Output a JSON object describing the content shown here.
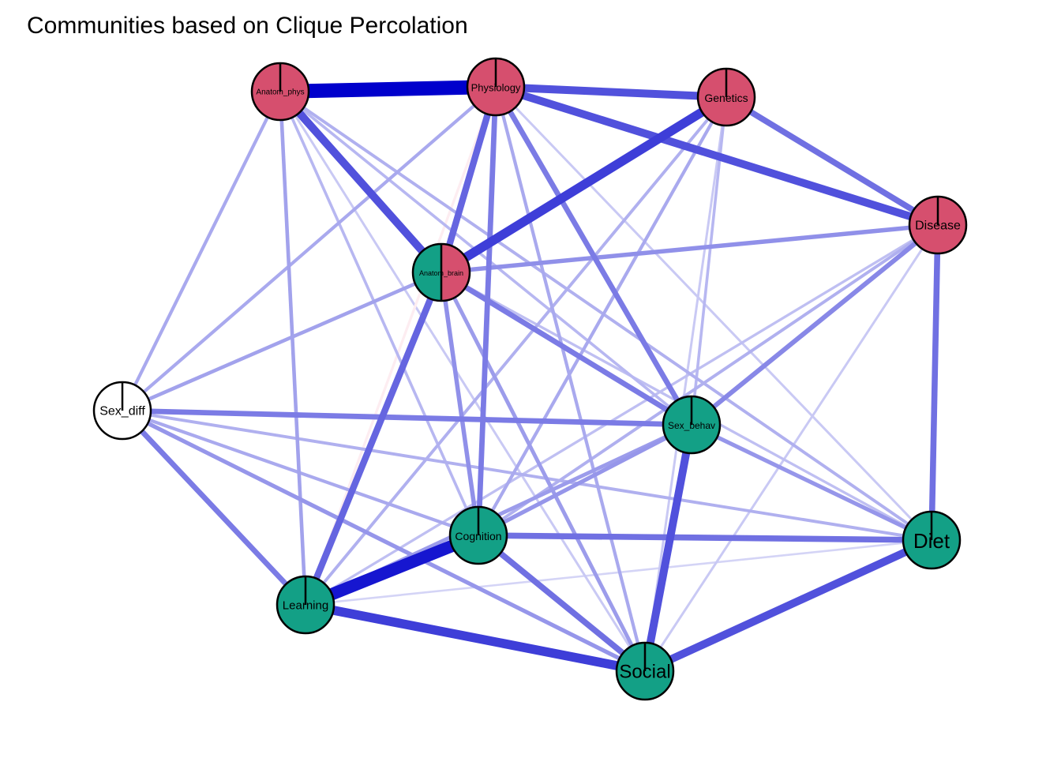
{
  "title": "Communities based on Clique Percolation",
  "colors": {
    "community_red": "#d64f6e",
    "community_teal": "#13a086",
    "unassigned": "#ffffff",
    "edge_positive": "#0000cc",
    "edge_negative": "#f5b8c8"
  },
  "nodes": [
    {
      "id": "Anatom_phys",
      "label": "Anatom_phys",
      "communities": [
        "red"
      ]
    },
    {
      "id": "Physiology",
      "label": "Physiology",
      "communities": [
        "red"
      ]
    },
    {
      "id": "Genetics",
      "label": "Genetics",
      "communities": [
        "red"
      ]
    },
    {
      "id": "Disease",
      "label": "Disease",
      "communities": [
        "red"
      ]
    },
    {
      "id": "Anatom_brain",
      "label": "Anatom_brain",
      "communities": [
        "teal",
        "red"
      ]
    },
    {
      "id": "Sex_diff",
      "label": "Sex_diff",
      "communities": []
    },
    {
      "id": "Sex_behav",
      "label": "Sex_behav",
      "communities": [
        "teal"
      ]
    },
    {
      "id": "Cognition",
      "label": "Cognition",
      "communities": [
        "teal"
      ]
    },
    {
      "id": "Diet",
      "label": "Diet",
      "communities": [
        "teal"
      ]
    },
    {
      "id": "Learning",
      "label": "Learning",
      "communities": [
        "teal"
      ]
    },
    {
      "id": "Social",
      "label": "Social",
      "communities": [
        "teal"
      ]
    }
  ],
  "edges": [
    {
      "from": "Anatom_phys",
      "to": "Physiology",
      "weight": 1.0
    },
    {
      "from": "Cognition",
      "to": "Learning",
      "weight": 0.85
    },
    {
      "from": "Genetics",
      "to": "Anatom_brain",
      "weight": 0.6
    },
    {
      "from": "Learning",
      "to": "Social",
      "weight": 0.6
    },
    {
      "from": "Physiology",
      "to": "Genetics",
      "weight": 0.5
    },
    {
      "from": "Physiology",
      "to": "Disease",
      "weight": 0.5
    },
    {
      "from": "Anatom_phys",
      "to": "Anatom_brain",
      "weight": 0.5
    },
    {
      "from": "Sex_behav",
      "to": "Social",
      "weight": 0.5
    },
    {
      "from": "Diet",
      "to": "Social",
      "weight": 0.5
    },
    {
      "from": "Anatom_brain",
      "to": "Learning",
      "weight": 0.4
    },
    {
      "from": "Physiology",
      "to": "Anatom_brain",
      "weight": 0.4
    },
    {
      "from": "Disease",
      "to": "Diet",
      "weight": 0.35
    },
    {
      "from": "Cognition",
      "to": "Diet",
      "weight": 0.35
    },
    {
      "from": "Cognition",
      "to": "Social",
      "weight": 0.35
    },
    {
      "from": "Genetics",
      "to": "Disease",
      "weight": 0.35
    },
    {
      "from": "Anatom_brain",
      "to": "Sex_behav",
      "weight": 0.3
    },
    {
      "from": "Physiology",
      "to": "Sex_behav",
      "weight": 0.3
    },
    {
      "from": "Sex_diff",
      "to": "Sex_behav",
      "weight": 0.3
    },
    {
      "from": "Physiology",
      "to": "Cognition",
      "weight": 0.3
    },
    {
      "from": "Sex_diff",
      "to": "Learning",
      "weight": 0.3
    },
    {
      "from": "Disease",
      "to": "Sex_behav",
      "weight": 0.25
    },
    {
      "from": "Anatom_brain",
      "to": "Disease",
      "weight": 0.22
    },
    {
      "from": "Anatom_brain",
      "to": "Cognition",
      "weight": 0.22
    },
    {
      "from": "Sex_behav",
      "to": "Diet",
      "weight": 0.2
    },
    {
      "from": "Sex_diff",
      "to": "Social",
      "weight": 0.2
    },
    {
      "from": "Sex_behav",
      "to": "Cognition",
      "weight": 0.2
    },
    {
      "from": "Sex_behav",
      "to": "Learning",
      "weight": 0.18
    },
    {
      "from": "Anatom_brain",
      "to": "Social",
      "weight": 0.18
    },
    {
      "from": "Anatom_phys",
      "to": "Learning",
      "weight": 0.16
    },
    {
      "from": "Sex_diff",
      "to": "Anatom_brain",
      "weight": 0.16
    },
    {
      "from": "Sex_diff",
      "to": "Physiology",
      "weight": 0.14
    },
    {
      "from": "Sex_diff",
      "to": "Anatom_phys",
      "weight": 0.14
    },
    {
      "from": "Physiology",
      "to": "Social",
      "weight": 0.14
    },
    {
      "from": "Genetics",
      "to": "Cognition",
      "weight": 0.14
    },
    {
      "from": "Genetics",
      "to": "Learning",
      "weight": 0.12
    },
    {
      "from": "Sex_diff",
      "to": "Cognition",
      "weight": 0.14
    },
    {
      "from": "Sex_diff",
      "to": "Diet",
      "weight": 0.12
    },
    {
      "from": "Anatom_phys",
      "to": "Diet",
      "weight": 0.12
    },
    {
      "from": "Disease",
      "to": "Cognition",
      "weight": 0.12
    },
    {
      "from": "Anatom_phys",
      "to": "Sex_behav",
      "weight": 0.1
    },
    {
      "from": "Anatom_phys",
      "to": "Cognition",
      "weight": 0.1
    },
    {
      "from": "Genetics",
      "to": "Sex_behav",
      "weight": 0.1
    },
    {
      "from": "Disease",
      "to": "Learning",
      "weight": 0.08
    },
    {
      "from": "Anatom_brain",
      "to": "Diet",
      "weight": 0.08
    },
    {
      "from": "Disease",
      "to": "Social",
      "weight": 0.06
    },
    {
      "from": "Physiology",
      "to": "Diet",
      "weight": 0.06
    },
    {
      "from": "Genetics",
      "to": "Social",
      "weight": 0.06
    },
    {
      "from": "Diet",
      "to": "Learning",
      "weight": 0.04
    },
    {
      "from": "Anatom_phys",
      "to": "Social",
      "weight": 0.06
    },
    {
      "from": "Physiology",
      "to": "Learning",
      "weight": -0.08
    }
  ]
}
